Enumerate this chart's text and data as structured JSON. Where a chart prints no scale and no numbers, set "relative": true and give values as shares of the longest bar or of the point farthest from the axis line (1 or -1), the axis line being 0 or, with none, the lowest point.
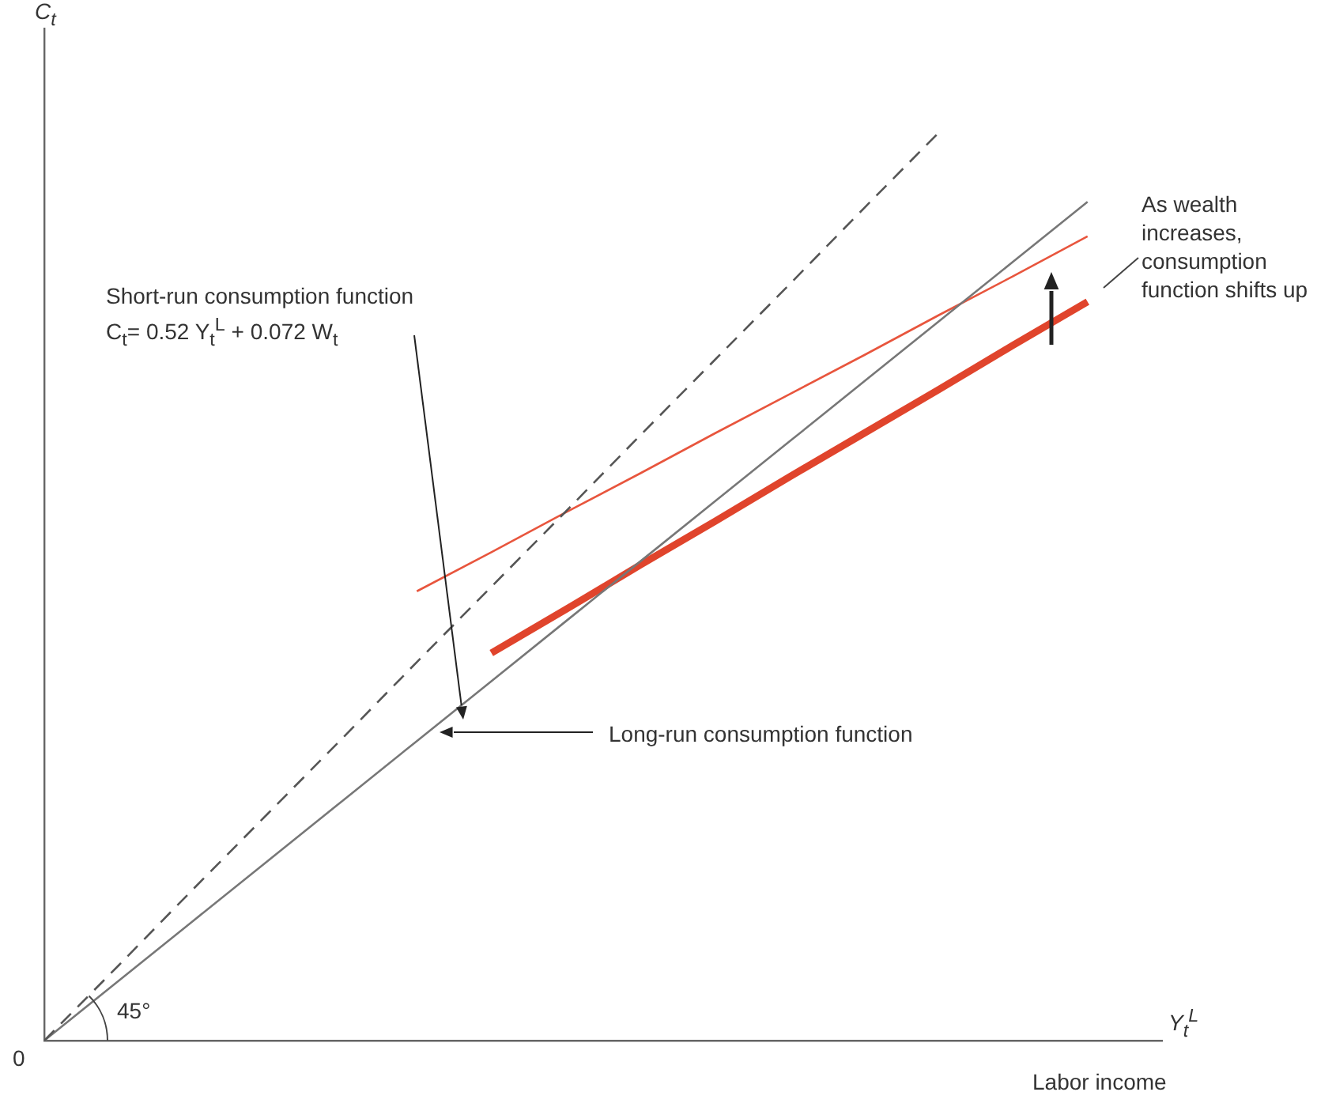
{
  "chart_data": {
    "type": "line",
    "relative": true,
    "xlabel": "Y$_{t}$$^{L}$",
    "ylabel": "C$_{t}$",
    "categories": [
      null,
      null,
      null,
      null,
      null,
      null,
      null,
      null,
      null,
      null,
      null,
      null,
      null,
      null,
      null,
      null
    ],
    "series": [
      {
        "color": "#555555",
        "line_style": "dashed",
        "values": [
          0,
          0.083,
          0.167,
          0.25,
          0.333,
          0.417,
          0.5,
          0.583,
          0.667,
          0.75,
          0.833,
          0.917,
          1.0,
          null,
          null,
          null
        ]
      },
      {
        "color": "#777777",
        "values": [
          0,
          0.066,
          0.132,
          0.198,
          0.264,
          0.33,
          0.396,
          0.462,
          0.528,
          0.594,
          0.66,
          0.726,
          0.792,
          0.858,
          0.924,
          null
        ]
      },
      {
        "color": "#e8553d",
        "values": [
          null,
          null,
          null,
          null,
          null,
          0.495,
          0.538,
          0.582,
          0.625,
          0.669,
          0.712,
          0.755,
          0.799,
          0.842,
          0.886,
          null
        ]
      },
      {
        "color": "#e0442c",
        "values": [
          null,
          null,
          null,
          null,
          null,
          null,
          0.427,
          0.475,
          0.524,
          0.572,
          0.621,
          0.669,
          0.717,
          0.766,
          0.814,
          null
        ]
      }
    ],
    "annotations": [
      "Short-run consumption function",
      "C$_{t}$= 0.52 Y$_{t}$$^{L}$ + 0.072 W$_{t}$",
      "Long-run consumption function",
      "As wealth increases, consumption function shifts up",
      "45°",
      "0",
      "Labor income"
    ],
    "grid": false,
    "legend": false,
    "marker": "none"
  }
}
